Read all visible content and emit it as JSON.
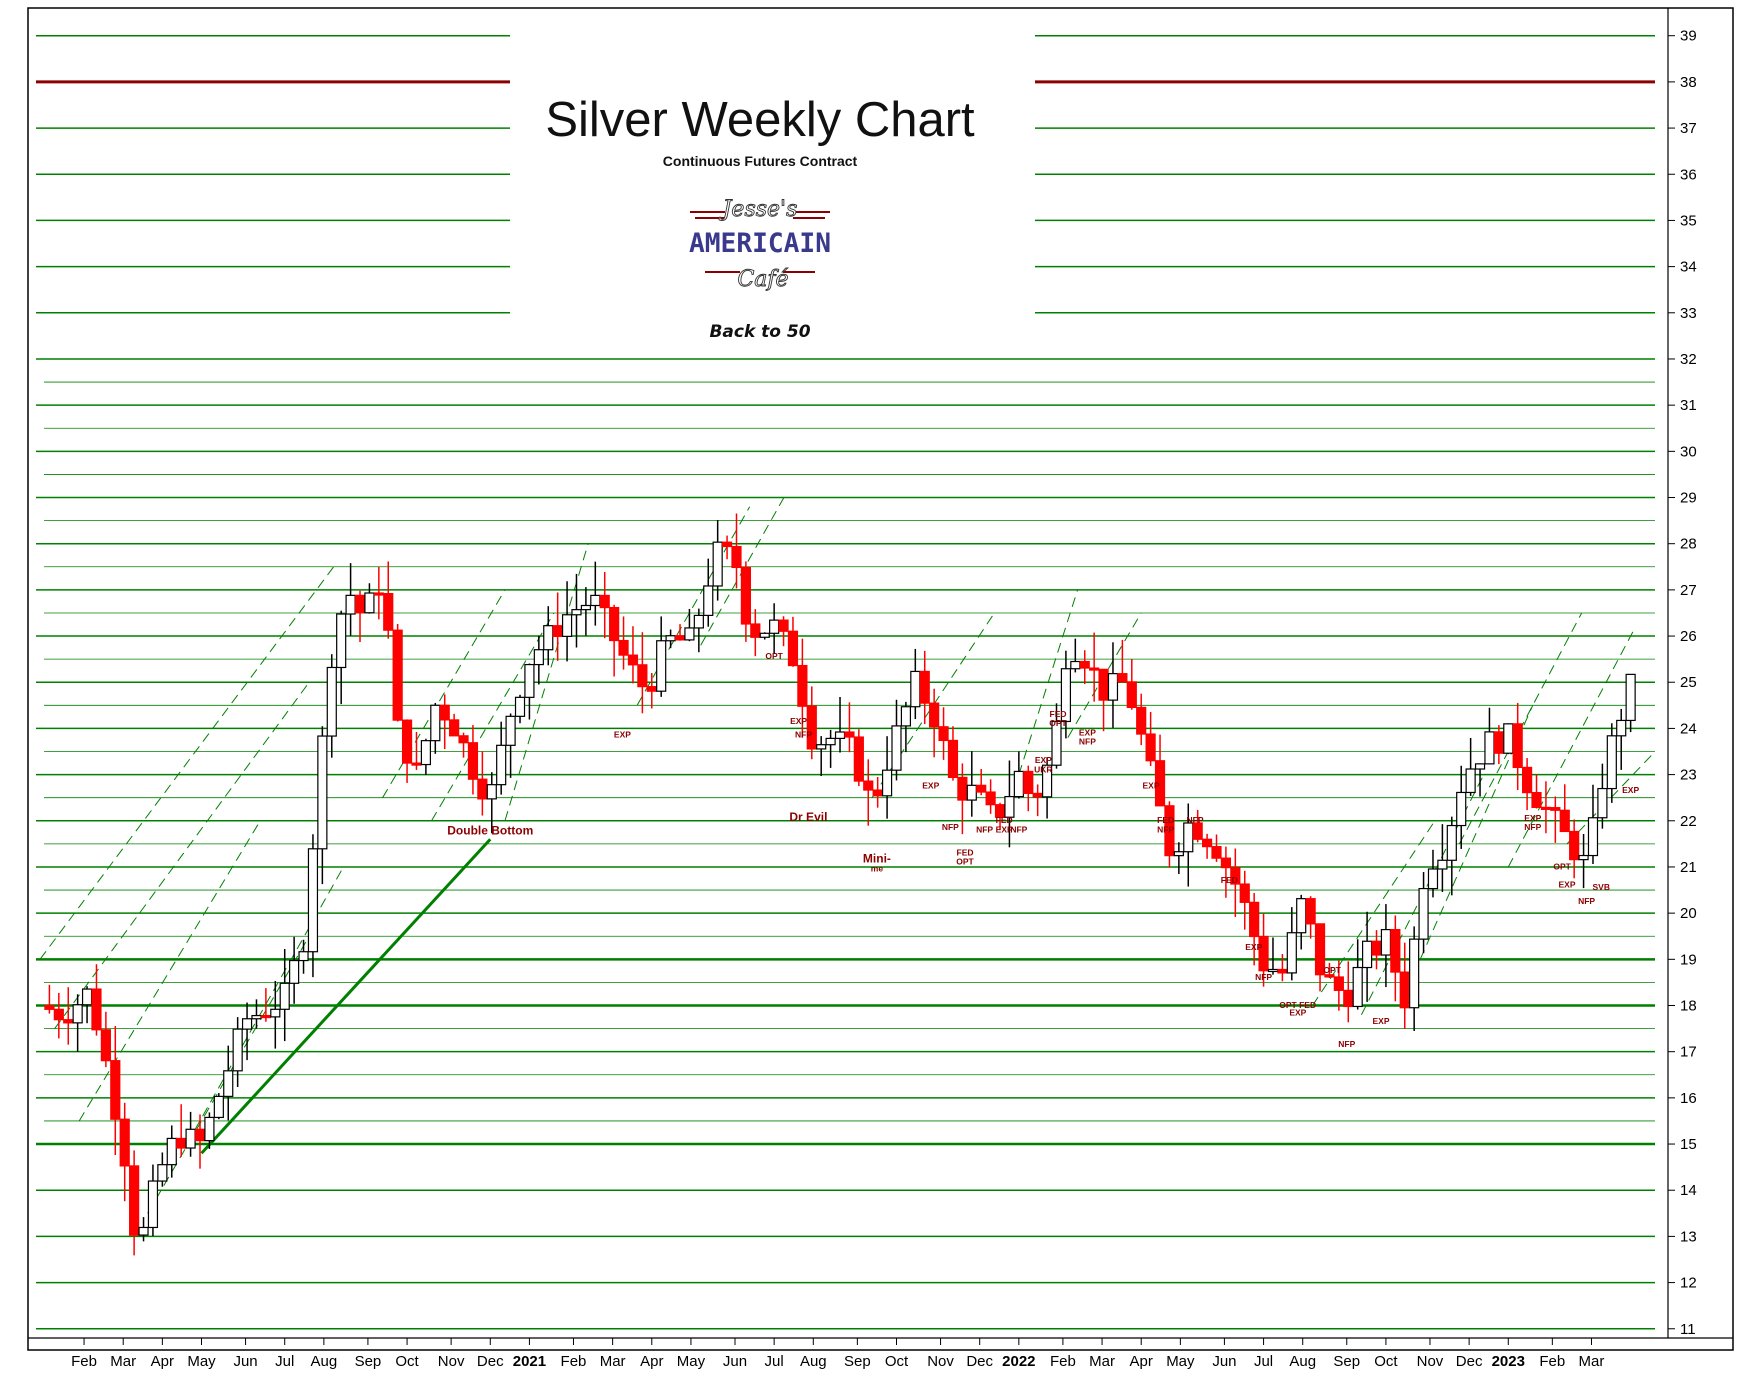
{
  "chart_data": {
    "type": "candlestick",
    "title": "Silver Weekly Chart",
    "subtitle": "Continuous Futures Contract",
    "tagline": "Back to 50",
    "logo": {
      "lines": [
        "Jesse's",
        "AMERICAIN",
        "Café"
      ]
    },
    "ylim": [
      10.8,
      39.6
    ],
    "yticks": [
      11,
      12,
      13,
      14,
      15,
      16,
      17,
      18,
      19,
      20,
      21,
      22,
      23,
      24,
      25,
      26,
      27,
      28,
      29,
      30,
      31,
      32,
      33,
      34,
      35,
      36,
      37,
      38,
      39
    ],
    "xlim": [
      2020.0,
      2023.31
    ],
    "x_ticks": [
      {
        "label": "Feb",
        "x": 2020.09
      },
      {
        "label": "Mar",
        "x": 2020.17
      },
      {
        "label": "Apr",
        "x": 2020.25
      },
      {
        "label": "May",
        "x": 2020.33
      },
      {
        "label": "Jun",
        "x": 2020.42
      },
      {
        "label": "Jul",
        "x": 2020.5
      },
      {
        "label": "Aug",
        "x": 2020.58
      },
      {
        "label": "Sep",
        "x": 2020.67
      },
      {
        "label": "Oct",
        "x": 2020.75
      },
      {
        "label": "Nov",
        "x": 2020.84
      },
      {
        "label": "Dec",
        "x": 2020.92
      },
      {
        "label": "2021",
        "x": 2021.0,
        "bold": true
      },
      {
        "label": "Feb",
        "x": 2021.09
      },
      {
        "label": "Mar",
        "x": 2021.17
      },
      {
        "label": "Apr",
        "x": 2021.25
      },
      {
        "label": "May",
        "x": 2021.33
      },
      {
        "label": "Jun",
        "x": 2021.42
      },
      {
        "label": "Jul",
        "x": 2021.5
      },
      {
        "label": "Aug",
        "x": 2021.58
      },
      {
        "label": "Sep",
        "x": 2021.67
      },
      {
        "label": "Oct",
        "x": 2021.75
      },
      {
        "label": "Nov",
        "x": 2021.84
      },
      {
        "label": "Dec",
        "x": 2021.92
      },
      {
        "label": "2022",
        "x": 2022.0,
        "bold": true
      },
      {
        "label": "Feb",
        "x": 2022.09
      },
      {
        "label": "Mar",
        "x": 2022.17
      },
      {
        "label": "Apr",
        "x": 2022.25
      },
      {
        "label": "May",
        "x": 2022.33
      },
      {
        "label": "Jun",
        "x": 2022.42
      },
      {
        "label": "Jul",
        "x": 2022.5
      },
      {
        "label": "Aug",
        "x": 2022.58
      },
      {
        "label": "Sep",
        "x": 2022.67
      },
      {
        "label": "Oct",
        "x": 2022.75
      },
      {
        "label": "Nov",
        "x": 2022.84
      },
      {
        "label": "Dec",
        "x": 2022.92
      },
      {
        "label": "2023",
        "x": 2023.0,
        "bold": true
      },
      {
        "label": "Feb",
        "x": 2023.09
      },
      {
        "label": "Mar",
        "x": 2023.17
      }
    ],
    "close_anchors": [
      [
        2020.0,
        18.0
      ],
      [
        2020.05,
        17.8
      ],
      [
        2020.1,
        18.3
      ],
      [
        2020.13,
        17.0
      ],
      [
        2020.17,
        15.0
      ],
      [
        2020.2,
        12.6
      ],
      [
        2020.24,
        14.3
      ],
      [
        2020.28,
        15.2
      ],
      [
        2020.33,
        15.0
      ],
      [
        2020.38,
        16.5
      ],
      [
        2020.42,
        17.7
      ],
      [
        2020.46,
        17.9
      ],
      [
        2020.5,
        18.2
      ],
      [
        2020.54,
        19.5
      ],
      [
        2020.57,
        23.0
      ],
      [
        2020.6,
        26.0
      ],
      [
        2020.63,
        27.0
      ],
      [
        2020.66,
        26.4
      ],
      [
        2020.7,
        27.3
      ],
      [
        2020.73,
        24.0
      ],
      [
        2020.77,
        23.0
      ],
      [
        2020.81,
        24.6
      ],
      [
        2020.85,
        24.0
      ],
      [
        2020.89,
        23.0
      ],
      [
        2020.92,
        22.5
      ],
      [
        2020.96,
        24.3
      ],
      [
        2021.0,
        25.5
      ],
      [
        2021.04,
        26.0
      ],
      [
        2021.08,
        26.5
      ],
      [
        2021.13,
        26.8
      ],
      [
        2021.17,
        26.0
      ],
      [
        2021.2,
        25.4
      ],
      [
        2021.24,
        24.8
      ],
      [
        2021.28,
        25.9
      ],
      [
        2021.33,
        25.9
      ],
      [
        2021.38,
        27.8
      ],
      [
        2021.42,
        27.7
      ],
      [
        2021.45,
        26.1
      ],
      [
        2021.5,
        26.2
      ],
      [
        2021.54,
        25.5
      ],
      [
        2021.58,
        23.7
      ],
      [
        2021.62,
        23.8
      ],
      [
        2021.66,
        23.5
      ],
      [
        2021.7,
        22.3
      ],
      [
        2021.74,
        23.6
      ],
      [
        2021.79,
        25.0
      ],
      [
        2021.83,
        24.2
      ],
      [
        2021.87,
        22.7
      ],
      [
        2021.91,
        22.6
      ],
      [
        2021.95,
        22.0
      ],
      [
        2022.0,
        23.0
      ],
      [
        2022.03,
        22.4
      ],
      [
        2022.07,
        23.5
      ],
      [
        2022.1,
        25.9
      ],
      [
        2022.14,
        25.5
      ],
      [
        2022.17,
        24.8
      ],
      [
        2022.22,
        25.0
      ],
      [
        2022.27,
        23.0
      ],
      [
        2022.31,
        21.3
      ],
      [
        2022.35,
        22.0
      ],
      [
        2022.4,
        21.5
      ],
      [
        2022.45,
        20.5
      ],
      [
        2022.5,
        18.9
      ],
      [
        2022.54,
        18.7
      ],
      [
        2022.58,
        20.3
      ],
      [
        2022.62,
        18.6
      ],
      [
        2022.67,
        18.2
      ],
      [
        2022.71,
        19.1
      ],
      [
        2022.75,
        19.4
      ],
      [
        2022.79,
        18.1
      ],
      [
        2022.83,
        21.0
      ],
      [
        2022.87,
        21.5
      ],
      [
        2022.91,
        23.0
      ],
      [
        2022.96,
        23.7
      ],
      [
        2023.0,
        23.8
      ],
      [
        2023.04,
        22.8
      ],
      [
        2023.08,
        22.2
      ],
      [
        2023.12,
        21.6
      ],
      [
        2023.16,
        21.0
      ],
      [
        2023.19,
        22.8
      ],
      [
        2023.22,
        24.0
      ],
      [
        2023.25,
        24.9
      ]
    ],
    "annotations": [
      {
        "text": "Double Bottom",
        "x": 2020.92,
        "y": 21.7
      },
      {
        "text": "EXP",
        "x": 2021.19,
        "y": 23.8
      },
      {
        "text": "OPT",
        "x": 2021.5,
        "y": 25.5
      },
      {
        "text": "EXP",
        "x": 2021.55,
        "y": 24.1
      },
      {
        "text": "NFP",
        "x": 2021.56,
        "y": 23.8
      },
      {
        "text": "Dr Evil",
        "x": 2021.57,
        "y": 22.0
      },
      {
        "text": "Mini-",
        "x": 2021.71,
        "y": 21.1
      },
      {
        "text": "me",
        "x": 2021.71,
        "y": 20.9
      },
      {
        "text": "EXP",
        "x": 2021.82,
        "y": 22.7
      },
      {
        "text": "NFP",
        "x": 2021.86,
        "y": 21.8
      },
      {
        "text": "FED",
        "x": 2021.89,
        "y": 21.25
      },
      {
        "text": "OPT",
        "x": 2021.89,
        "y": 21.05
      },
      {
        "text": "NFP",
        "x": 2021.93,
        "y": 21.75
      },
      {
        "text": "FED",
        "x": 2021.97,
        "y": 21.95
      },
      {
        "text": "EXP",
        "x": 2021.97,
        "y": 21.75
      },
      {
        "text": "NFP",
        "x": 2022.0,
        "y": 21.75
      },
      {
        "text": "EXP",
        "x": 2022.05,
        "y": 23.25
      },
      {
        "text": "UKR",
        "x": 2022.05,
        "y": 23.05
      },
      {
        "text": "FED",
        "x": 2022.08,
        "y": 24.25
      },
      {
        "text": "OPT",
        "x": 2022.08,
        "y": 24.05
      },
      {
        "text": "EXP",
        "x": 2022.14,
        "y": 23.85
      },
      {
        "text": "NFP",
        "x": 2022.14,
        "y": 23.65
      },
      {
        "text": "EXP",
        "x": 2022.27,
        "y": 22.7
      },
      {
        "text": "FED",
        "x": 2022.3,
        "y": 21.95
      },
      {
        "text": "NFP",
        "x": 2022.3,
        "y": 21.75
      },
      {
        "text": "NFP",
        "x": 2022.36,
        "y": 21.95
      },
      {
        "text": "FED",
        "x": 2022.43,
        "y": 20.65
      },
      {
        "text": "EXP",
        "x": 2022.48,
        "y": 19.2
      },
      {
        "text": "NFP",
        "x": 2022.5,
        "y": 18.55
      },
      {
        "text": "OPT",
        "x": 2022.55,
        "y": 17.95
      },
      {
        "text": "EXP",
        "x": 2022.57,
        "y": 17.78
      },
      {
        "text": "FED",
        "x": 2022.59,
        "y": 17.95
      },
      {
        "text": "OPT",
        "x": 2022.64,
        "y": 18.7
      },
      {
        "text": "NFP",
        "x": 2022.67,
        "y": 17.1
      },
      {
        "text": "EXP",
        "x": 2022.74,
        "y": 17.6
      },
      {
        "text": "EXP",
        "x": 2023.05,
        "y": 22.0
      },
      {
        "text": "NFP",
        "x": 2023.05,
        "y": 21.8
      },
      {
        "text": "OPT",
        "x": 2023.11,
        "y": 20.95
      },
      {
        "text": "EXP",
        "x": 2023.12,
        "y": 20.55
      },
      {
        "text": "NFP",
        "x": 2023.16,
        "y": 20.2
      },
      {
        "text": "SVB",
        "x": 2023.19,
        "y": 20.5
      },
      {
        "text": "EXP",
        "x": 2023.25,
        "y": 22.6
      }
    ],
    "colors": {
      "up_fill": "#ffffff",
      "down_fill": "#ff0000",
      "candle_outline": "#000000",
      "grid": "#008000",
      "resistance": "#8b0000",
      "annotation": "#8b0000",
      "axis": "#000000"
    }
  }
}
